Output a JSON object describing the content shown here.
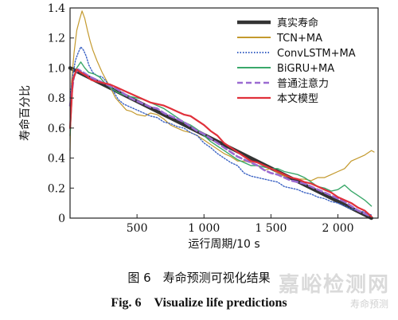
{
  "caption": {
    "cn": "图 6　寿命预测可视化结果",
    "en": "Fig. 6　Visualize life predictions"
  },
  "watermark": {
    "main": "嘉峪检测网",
    "sub": "寿命预测"
  },
  "chart_data": {
    "type": "line",
    "xlabel": "运行周期/10 s",
    "ylabel": "寿命百分比",
    "xlim": [
      0,
      2300
    ],
    "ylim": [
      0,
      1.4
    ],
    "xticks": [
      500,
      1000,
      1500,
      2000
    ],
    "xtick_labels": [
      "500",
      "1 000",
      "1 500",
      "2 000"
    ],
    "yticks": [
      0,
      0.2,
      0.4,
      0.6,
      0.8,
      1.0,
      1.2,
      1.4
    ],
    "ytick_labels": [
      "0",
      "0.2",
      "0.4",
      "0.6",
      "0.8",
      "1.0",
      "1.2",
      "1.4"
    ],
    "grid": false,
    "legend_position": "top-right",
    "series": [
      {
        "name": "真实寿命",
        "color": "#333333",
        "dash": "solid",
        "width": 4.5,
        "points": [
          [
            0,
            1.0
          ],
          [
            2250,
            0
          ]
        ]
      },
      {
        "name": "TCN+MA",
        "color": "#c49a2e",
        "dash": "solid",
        "width": 1.2,
        "points": [
          [
            0,
            0.45
          ],
          [
            10,
            0.9
          ],
          [
            30,
            1.1
          ],
          [
            50,
            1.25
          ],
          [
            70,
            1.32
          ],
          [
            90,
            1.38
          ],
          [
            110,
            1.33
          ],
          [
            130,
            1.25
          ],
          [
            150,
            1.18
          ],
          [
            170,
            1.12
          ],
          [
            200,
            1.05
          ],
          [
            240,
            0.97
          ],
          [
            270,
            0.92
          ],
          [
            300,
            0.87
          ],
          [
            340,
            0.8
          ],
          [
            380,
            0.76
          ],
          [
            420,
            0.72
          ],
          [
            460,
            0.71
          ],
          [
            500,
            0.69
          ],
          [
            560,
            0.68
          ],
          [
            600,
            0.7
          ],
          [
            650,
            0.69
          ],
          [
            700,
            0.66
          ],
          [
            750,
            0.62
          ],
          [
            800,
            0.6
          ],
          [
            850,
            0.58
          ],
          [
            900,
            0.57
          ],
          [
            950,
            0.55
          ],
          [
            1000,
            0.52
          ],
          [
            1050,
            0.49
          ],
          [
            1100,
            0.46
          ],
          [
            1150,
            0.43
          ],
          [
            1200,
            0.41
          ],
          [
            1250,
            0.38
          ],
          [
            1300,
            0.38
          ],
          [
            1350,
            0.37
          ],
          [
            1400,
            0.35
          ],
          [
            1450,
            0.32
          ],
          [
            1500,
            0.33
          ],
          [
            1550,
            0.3
          ],
          [
            1600,
            0.28
          ],
          [
            1650,
            0.27
          ],
          [
            1700,
            0.26
          ],
          [
            1750,
            0.26
          ],
          [
            1800,
            0.25
          ],
          [
            1850,
            0.27
          ],
          [
            1900,
            0.27
          ],
          [
            1950,
            0.29
          ],
          [
            2000,
            0.31
          ],
          [
            2050,
            0.33
          ],
          [
            2100,
            0.38
          ],
          [
            2150,
            0.4
          ],
          [
            2200,
            0.42
          ],
          [
            2250,
            0.45
          ],
          [
            2270,
            0.44
          ]
        ]
      },
      {
        "name": "ConvLSTM+MA",
        "color": "#3a62c4",
        "dash": "dotted",
        "width": 1.4,
        "points": [
          [
            0,
            0.8
          ],
          [
            20,
            0.95
          ],
          [
            40,
            1.05
          ],
          [
            60,
            1.1
          ],
          [
            80,
            1.14
          ],
          [
            100,
            1.12
          ],
          [
            120,
            1.08
          ],
          [
            140,
            1.02
          ],
          [
            170,
            0.97
          ],
          [
            200,
            0.95
          ],
          [
            240,
            0.94
          ],
          [
            280,
            0.9
          ],
          [
            320,
            0.85
          ],
          [
            360,
            0.79
          ],
          [
            400,
            0.76
          ],
          [
            450,
            0.74
          ],
          [
            500,
            0.72
          ],
          [
            550,
            0.7
          ],
          [
            600,
            0.68
          ],
          [
            650,
            0.67
          ],
          [
            700,
            0.64
          ],
          [
            750,
            0.63
          ],
          [
            800,
            0.61
          ],
          [
            850,
            0.6
          ],
          [
            900,
            0.57
          ],
          [
            950,
            0.55
          ],
          [
            1000,
            0.5
          ],
          [
            1050,
            0.47
          ],
          [
            1100,
            0.43
          ],
          [
            1150,
            0.4
          ],
          [
            1200,
            0.37
          ],
          [
            1250,
            0.35
          ],
          [
            1300,
            0.3
          ],
          [
            1350,
            0.28
          ],
          [
            1400,
            0.27
          ],
          [
            1450,
            0.26
          ],
          [
            1500,
            0.25
          ],
          [
            1550,
            0.24
          ],
          [
            1600,
            0.21
          ],
          [
            1650,
            0.2
          ],
          [
            1700,
            0.19
          ],
          [
            1750,
            0.17
          ],
          [
            1800,
            0.16
          ],
          [
            1850,
            0.14
          ],
          [
            1900,
            0.13
          ],
          [
            1950,
            0.11
          ],
          [
            2000,
            0.1
          ],
          [
            2050,
            0.08
          ],
          [
            2100,
            0.06
          ],
          [
            2150,
            0.05
          ],
          [
            2200,
            0.04
          ],
          [
            2250,
            0.02
          ]
        ]
      },
      {
        "name": "BiGRU+MA",
        "color": "#3aa86a",
        "dash": "solid",
        "width": 1.4,
        "points": [
          [
            0,
            0.55
          ],
          [
            20,
            0.9
          ],
          [
            50,
            1.0
          ],
          [
            80,
            1.04
          ],
          [
            110,
            1.0
          ],
          [
            140,
            0.97
          ],
          [
            180,
            0.96
          ],
          [
            220,
            0.94
          ],
          [
            260,
            0.9
          ],
          [
            300,
            0.87
          ],
          [
            350,
            0.84
          ],
          [
            400,
            0.82
          ],
          [
            450,
            0.81
          ],
          [
            500,
            0.8
          ],
          [
            550,
            0.79
          ],
          [
            600,
            0.77
          ],
          [
            650,
            0.75
          ],
          [
            700,
            0.73
          ],
          [
            750,
            0.7
          ],
          [
            800,
            0.67
          ],
          [
            850,
            0.64
          ],
          [
            900,
            0.62
          ],
          [
            950,
            0.59
          ],
          [
            1000,
            0.55
          ],
          [
            1050,
            0.51
          ],
          [
            1100,
            0.48
          ],
          [
            1150,
            0.45
          ],
          [
            1200,
            0.42
          ],
          [
            1250,
            0.39
          ],
          [
            1300,
            0.37
          ],
          [
            1350,
            0.35
          ],
          [
            1400,
            0.35
          ],
          [
            1450,
            0.34
          ],
          [
            1500,
            0.33
          ],
          [
            1550,
            0.33
          ],
          [
            1600,
            0.31
          ],
          [
            1650,
            0.3
          ],
          [
            1700,
            0.29
          ],
          [
            1750,
            0.27
          ],
          [
            1800,
            0.24
          ],
          [
            1850,
            0.21
          ],
          [
            1900,
            0.2
          ],
          [
            1950,
            0.18
          ],
          [
            2000,
            0.19
          ],
          [
            2050,
            0.22
          ],
          [
            2100,
            0.18
          ],
          [
            2150,
            0.15
          ],
          [
            2200,
            0.12
          ],
          [
            2250,
            0.08
          ]
        ]
      },
      {
        "name": "普通注意力",
        "color": "#9b6bd1",
        "dash": "dashed",
        "width": 2.6,
        "points": [
          [
            0,
            0.75
          ],
          [
            30,
            0.95
          ],
          [
            60,
            0.99
          ],
          [
            100,
            0.97
          ],
          [
            150,
            0.94
          ],
          [
            200,
            0.92
          ],
          [
            250,
            0.9
          ],
          [
            300,
            0.88
          ],
          [
            350,
            0.86
          ],
          [
            400,
            0.83
          ],
          [
            450,
            0.8
          ],
          [
            500,
            0.78
          ],
          [
            550,
            0.76
          ],
          [
            600,
            0.74
          ],
          [
            650,
            0.73
          ],
          [
            700,
            0.7
          ],
          [
            750,
            0.68
          ],
          [
            800,
            0.66
          ],
          [
            850,
            0.64
          ],
          [
            900,
            0.61
          ],
          [
            950,
            0.58
          ],
          [
            1000,
            0.56
          ],
          [
            1050,
            0.53
          ],
          [
            1100,
            0.5
          ],
          [
            1150,
            0.47
          ],
          [
            1200,
            0.44
          ],
          [
            1250,
            0.41
          ],
          [
            1300,
            0.39
          ],
          [
            1350,
            0.37
          ],
          [
            1400,
            0.35
          ],
          [
            1450,
            0.32
          ],
          [
            1500,
            0.3
          ],
          [
            1550,
            0.29
          ],
          [
            1600,
            0.27
          ],
          [
            1650,
            0.25
          ],
          [
            1700,
            0.24
          ],
          [
            1750,
            0.23
          ],
          [
            1800,
            0.21
          ],
          [
            1850,
            0.19
          ],
          [
            1900,
            0.17
          ],
          [
            1950,
            0.15
          ],
          [
            2000,
            0.13
          ],
          [
            2050,
            0.11
          ],
          [
            2100,
            0.08
          ],
          [
            2150,
            0.05
          ],
          [
            2200,
            0.03
          ],
          [
            2250,
            0.01
          ]
        ]
      },
      {
        "name": "本文模型",
        "color": "#e0303a",
        "dash": "solid",
        "width": 2.2,
        "points": [
          [
            0,
            0.6
          ],
          [
            20,
            0.92
          ],
          [
            50,
            0.99
          ],
          [
            80,
            0.97
          ],
          [
            120,
            0.95
          ],
          [
            160,
            0.92
          ],
          [
            200,
            0.91
          ],
          [
            250,
            0.9
          ],
          [
            300,
            0.89
          ],
          [
            350,
            0.87
          ],
          [
            400,
            0.85
          ],
          [
            450,
            0.83
          ],
          [
            500,
            0.81
          ],
          [
            550,
            0.79
          ],
          [
            600,
            0.77
          ],
          [
            650,
            0.76
          ],
          [
            700,
            0.75
          ],
          [
            750,
            0.73
          ],
          [
            800,
            0.71
          ],
          [
            850,
            0.69
          ],
          [
            900,
            0.68
          ],
          [
            950,
            0.65
          ],
          [
            1000,
            0.62
          ],
          [
            1050,
            0.58
          ],
          [
            1100,
            0.55
          ],
          [
            1150,
            0.5
          ],
          [
            1200,
            0.47
          ],
          [
            1250,
            0.44
          ],
          [
            1300,
            0.41
          ],
          [
            1350,
            0.38
          ],
          [
            1400,
            0.37
          ],
          [
            1450,
            0.35
          ],
          [
            1500,
            0.33
          ],
          [
            1550,
            0.31
          ],
          [
            1600,
            0.29
          ],
          [
            1650,
            0.27
          ],
          [
            1700,
            0.26
          ],
          [
            1750,
            0.24
          ],
          [
            1800,
            0.23
          ],
          [
            1850,
            0.21
          ],
          [
            1900,
            0.19
          ],
          [
            1950,
            0.17
          ],
          [
            2000,
            0.14
          ],
          [
            2050,
            0.12
          ],
          [
            2100,
            0.1
          ],
          [
            2150,
            0.07
          ],
          [
            2200,
            0.05
          ],
          [
            2250,
            0.01
          ]
        ]
      }
    ]
  }
}
